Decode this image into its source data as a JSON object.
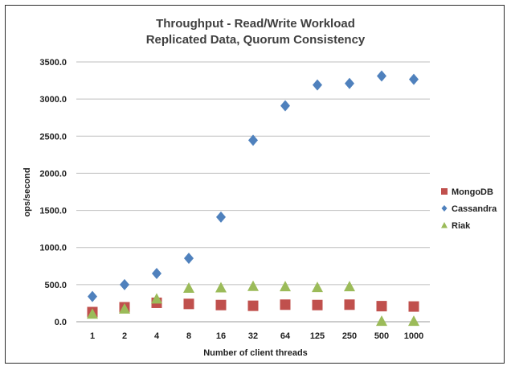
{
  "chart_data": {
    "type": "scatter",
    "title_lines": [
      "Throughput - Read/Write Workload",
      "Replicated Data, Quorum Consistency"
    ],
    "xlabel": "Number of client threads",
    "ylabel": "ops/second",
    "categories": [
      "1",
      "2",
      "4",
      "8",
      "16",
      "32",
      "64",
      "125",
      "250",
      "500",
      "1000"
    ],
    "ylim": [
      0,
      3500
    ],
    "yticks": [
      "0.0",
      "500.0",
      "1000.0",
      "1500.0",
      "2000.0",
      "2500.0",
      "3000.0",
      "3500.0"
    ],
    "grid": "horizontal",
    "legend_position": "right",
    "series": [
      {
        "name": "MongoDB",
        "marker": "square",
        "color": "#c0504d",
        "values": [
          130,
          195,
          255,
          240,
          225,
          215,
          230,
          225,
          230,
          210,
          205
        ]
      },
      {
        "name": "Cassandra",
        "marker": "diamond",
        "color": "#4f81bd",
        "values": [
          340,
          500,
          650,
          855,
          1410,
          2445,
          2910,
          3190,
          3210,
          3310,
          3265
        ]
      },
      {
        "name": "Riak",
        "marker": "triangle",
        "color": "#9bbb59",
        "values": [
          105,
          175,
          310,
          455,
          460,
          480,
          475,
          465,
          475,
          10,
          10
        ]
      }
    ]
  }
}
